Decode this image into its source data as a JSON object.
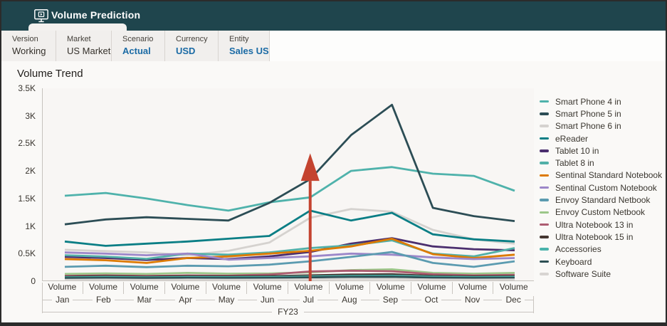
{
  "header": {
    "title": "Volume Prediction",
    "icon": "monitor-play-icon"
  },
  "pov": {
    "items": [
      {
        "label": "Version",
        "value": "Working",
        "style": "dark"
      },
      {
        "label": "Market",
        "value": "US Market",
        "style": "dark"
      },
      {
        "label": "Scenario",
        "value": "Actual",
        "style": "blue"
      },
      {
        "label": "Currency",
        "value": "USD",
        "style": "blue"
      },
      {
        "label": "Entity",
        "value": "Sales US",
        "style": "blue"
      }
    ]
  },
  "chart_data": {
    "type": "line",
    "title": "Volume Trend",
    "ylim": [
      0,
      3500
    ],
    "y_ticks": [
      "3.5K",
      "3K",
      "2.5K",
      "2K",
      "1.5K",
      "1K",
      "0.5K",
      "0"
    ],
    "x_group_label": "Volume",
    "categories": [
      "Jan",
      "Feb",
      "Mar",
      "Apr",
      "May",
      "Jun",
      "Jul",
      "Aug",
      "Sep",
      "Oct",
      "Nov",
      "Dec"
    ],
    "year_label": "FY23",
    "grid": false,
    "legend_position": "right",
    "series": [
      {
        "name": "Smart Phone 4 in",
        "color": "#4fb2ab",
        "values": [
          1550,
          1600,
          1500,
          1380,
          1280,
          1430,
          1520,
          2000,
          2070,
          1950,
          1910,
          1640
        ]
      },
      {
        "name": "Smart Phone 5 in",
        "color": "#2c4d55",
        "values": [
          1030,
          1120,
          1160,
          1130,
          1100,
          1420,
          1850,
          2650,
          3200,
          1330,
          1180,
          1090
        ]
      },
      {
        "name": "Smart Phone 6 in",
        "color": "#d5d2cf",
        "values": [
          570,
          545,
          520,
          470,
          550,
          700,
          1150,
          1310,
          1260,
          930,
          760,
          680
        ]
      },
      {
        "name": "eReader",
        "color": "#0a7e85",
        "values": [
          720,
          640,
          680,
          720,
          770,
          820,
          1280,
          1100,
          1240,
          850,
          760,
          720
        ]
      },
      {
        "name": "Tablet 10 in",
        "color": "#4b2e6e",
        "values": [
          440,
          420,
          385,
          420,
          400,
          450,
          530,
          680,
          780,
          630,
          580,
          560
        ]
      },
      {
        "name": "Tablet 8 in",
        "color": "#52b0a8",
        "values": [
          470,
          445,
          405,
          500,
          480,
          520,
          600,
          650,
          740,
          500,
          450,
          600
        ]
      },
      {
        "name": "Sentinal Standard Notebook",
        "color": "#dd7a00",
        "values": [
          400,
          380,
          330,
          420,
          450,
          500,
          550,
          630,
          770,
          490,
          420,
          480
        ]
      },
      {
        "name": "Sentinal Custom Notebook",
        "color": "#9c87c9",
        "values": [
          520,
          500,
          470,
          500,
          390,
          420,
          450,
          500,
          480,
          430,
          400,
          420
        ]
      },
      {
        "name": "Envoy Standard Netbook",
        "color": "#5b9bb0",
        "values": [
          260,
          280,
          255,
          280,
          270,
          300,
          360,
          440,
          530,
          330,
          260,
          360
        ]
      },
      {
        "name": "Envoy Custom Netbook",
        "color": "#9cc789",
        "values": [
          130,
          140,
          130,
          150,
          135,
          140,
          160,
          200,
          215,
          150,
          135,
          150
        ]
      },
      {
        "name": "Ultra Notebook 13 in",
        "color": "#ad5c71",
        "values": [
          95,
          105,
          95,
          105,
          100,
          120,
          175,
          190,
          180,
          125,
          105,
          115
        ]
      },
      {
        "name": "Ultra Notebook 15 in",
        "color": "#443630",
        "values": [
          80,
          90,
          80,
          90,
          85,
          90,
          105,
          120,
          125,
          95,
          85,
          90
        ]
      },
      {
        "name": "Accessories",
        "color": "#4ab3ab",
        "values": [
          70,
          75,
          70,
          75,
          72,
          75,
          85,
          95,
          100,
          80,
          72,
          78
        ]
      },
      {
        "name": "Keyboard",
        "color": "#2d4f54",
        "values": [
          55,
          60,
          55,
          60,
          58,
          60,
          68,
          78,
          80,
          62,
          58,
          60
        ]
      },
      {
        "name": "Software Suite",
        "color": "#d8d5d2",
        "values": [
          25,
          28,
          25,
          28,
          26,
          28,
          32,
          38,
          40,
          30,
          27,
          30
        ]
      }
    ],
    "annotation": {
      "type": "arrow-up",
      "color": "#c4432f",
      "x_category": "Jul",
      "shaft_top_value": 1820,
      "tip_value": 2320
    }
  },
  "colors": {
    "header_bg": "#1f454d",
    "pov_bg": "#f1efed",
    "accent_blue": "#1b6ba5",
    "axis_line": "#c6c2bd",
    "plot_bg": "#f8f6f4",
    "annotation_red": "#c4432f"
  }
}
